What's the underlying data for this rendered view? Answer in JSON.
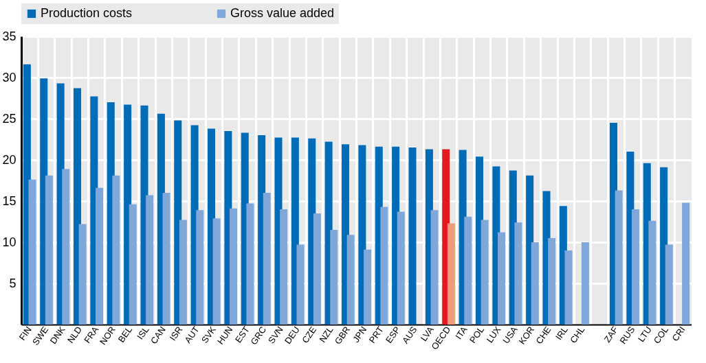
{
  "chart_data": {
    "type": "bar",
    "categories": [
      "FIN",
      "SWE",
      "DNK",
      "NLD",
      "FRA",
      "NOR",
      "BEL",
      "ISL",
      "CAN",
      "ISR",
      "AUT",
      "SVK",
      "HUN",
      "EST",
      "GRC",
      "SVN",
      "DEU",
      "CZE",
      "NZL",
      "GBR",
      "JPN",
      "PRT",
      "ESP",
      "AUS",
      "LVA",
      "OECD",
      "ITA",
      "POL",
      "LUX",
      "USA",
      "KOR",
      "CHE",
      "IRL",
      "CHL",
      null,
      "ZAF",
      "RUS",
      "LTU",
      "COL",
      "CRI"
    ],
    "series": [
      {
        "name": "Production costs",
        "color": "#006bb6",
        "colors": [
          "#006bb6",
          "#006bb6",
          "#006bb6",
          "#006bb6",
          "#006bb6",
          "#006bb6",
          "#006bb6",
          "#006bb6",
          "#006bb6",
          "#006bb6",
          "#006bb6",
          "#006bb6",
          "#006bb6",
          "#006bb6",
          "#006bb6",
          "#006bb6",
          "#006bb6",
          "#006bb6",
          "#006bb6",
          "#006bb6",
          "#006bb6",
          "#006bb6",
          "#006bb6",
          "#006bb6",
          "#006bb6",
          "#e3191f",
          "#006bb6",
          "#006bb6",
          "#006bb6",
          "#006bb6",
          "#006bb6",
          "#006bb6",
          "#006bb6",
          "#006bb6",
          "#006bb6",
          "#006bb6",
          "#006bb6",
          "#006bb6",
          "#006bb6",
          "#006bb6"
        ],
        "values": [
          31.6,
          29.9,
          29.3,
          28.7,
          27.7,
          27.0,
          26.7,
          26.6,
          25.6,
          24.8,
          24.2,
          23.8,
          23.5,
          23.3,
          23.0,
          22.7,
          22.7,
          22.6,
          22.2,
          21.9,
          21.8,
          21.6,
          21.6,
          21.5,
          21.3,
          21.3,
          21.2,
          20.4,
          19.2,
          18.7,
          18.1,
          16.2,
          14.4,
          null,
          null,
          24.5,
          21.0,
          19.6,
          19.1,
          null
        ]
      },
      {
        "name": "Gross value added",
        "color": "#7fa7d9",
        "colors": [
          "#7fa7d9",
          "#7fa7d9",
          "#7fa7d9",
          "#7fa7d9",
          "#7fa7d9",
          "#7fa7d9",
          "#7fa7d9",
          "#7fa7d9",
          "#7fa7d9",
          "#7fa7d9",
          "#7fa7d9",
          "#7fa7d9",
          "#7fa7d9",
          "#7fa7d9",
          "#7fa7d9",
          "#7fa7d9",
          "#7fa7d9",
          "#7fa7d9",
          "#7fa7d9",
          "#7fa7d9",
          "#7fa7d9",
          "#7fa7d9",
          "#7fa7d9",
          "#7fa7d9",
          "#7fa7d9",
          "#f4987c",
          "#7fa7d9",
          "#7fa7d9",
          "#7fa7d9",
          "#7fa7d9",
          "#7fa7d9",
          "#7fa7d9",
          "#7fa7d9",
          "#7fa7d9",
          "#7fa7d9",
          "#7fa7d9",
          "#7fa7d9",
          "#7fa7d9",
          "#7fa7d9",
          "#7fa7d9"
        ],
        "values": [
          17.6,
          18.1,
          18.9,
          12.2,
          16.6,
          18.1,
          14.6,
          15.7,
          16.0,
          12.7,
          13.9,
          12.9,
          14.1,
          14.7,
          16.0,
          14.0,
          9.7,
          13.5,
          11.5,
          10.9,
          9.1,
          14.3,
          13.7,
          null,
          13.9,
          12.3,
          13.1,
          12.7,
          11.2,
          12.4,
          10.0,
          10.5,
          9.0,
          10.0,
          null,
          16.3,
          14.0,
          12.6,
          9.7,
          14.8
        ]
      }
    ],
    "ylim": [
      0,
      35
    ],
    "yticks": [
      5,
      10,
      15,
      20,
      25,
      30,
      35
    ],
    "grid": true,
    "legend": "top"
  }
}
